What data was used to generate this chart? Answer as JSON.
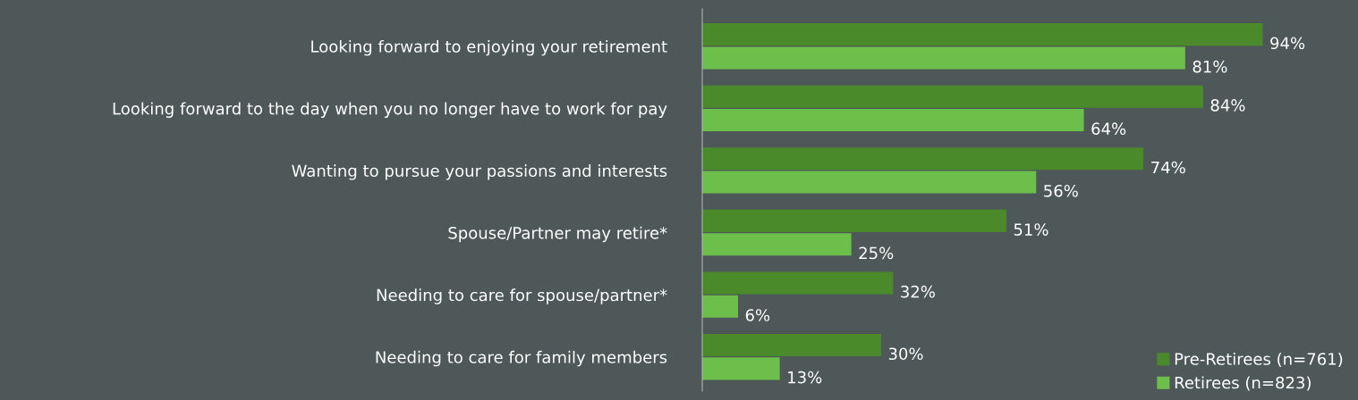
{
  "chart_data": {
    "type": "bar",
    "orientation": "horizontal",
    "categories": [
      "Looking forward to enjoying your retirement",
      "Looking forward to the day when you no longer have to work for pay",
      "Wanting to pursue your passions and interests",
      "Spouse/Partner may retire*",
      "Needing to care for spouse/partner*",
      "Needing to care for family members"
    ],
    "series": [
      {
        "name": "Pre-Retirees (n=761)",
        "color": "#4a8a2b",
        "values": [
          94,
          84,
          74,
          51,
          32,
          30
        ],
        "value_labels": [
          "94%",
          "84%",
          "74%",
          "51%",
          "32%",
          "30%"
        ]
      },
      {
        "name": "Retirees (n=823)",
        "color": "#6dbf4b",
        "values": [
          81,
          64,
          56,
          25,
          6,
          13
        ],
        "value_labels": [
          "81%",
          "64%",
          "56%",
          "25%",
          "6%",
          "13%"
        ]
      }
    ],
    "legend": "bottom right",
    "grid": false
  }
}
